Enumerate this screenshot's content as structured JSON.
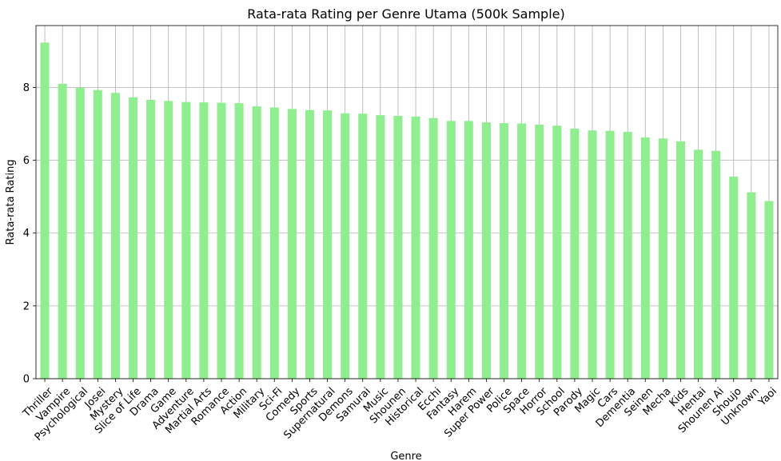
{
  "chart_data": {
    "type": "bar",
    "title": "Rata-rata Rating per Genre Utama (500k Sample)",
    "xlabel": "Genre",
    "ylabel": "Rata-rata Rating",
    "ylim": [
      0,
      9.7
    ],
    "yticks": [
      0,
      2,
      4,
      6,
      8
    ],
    "grid": true,
    "bar_color": "#90ee90",
    "categories": [
      "Thriller",
      "Vampire",
      "Psychological",
      "Josei",
      "Mystery",
      "Slice of Life",
      "Drama",
      "Game",
      "Adventure",
      "Martial Arts",
      "Romance",
      "Action",
      "Military",
      "Sci-Fi",
      "Comedy",
      "Sports",
      "Supernatural",
      "Demons",
      "Samurai",
      "Music",
      "Shounen",
      "Historical",
      "Ecchi",
      "Fantasy",
      "Harem",
      "Super Power",
      "Police",
      "Space",
      "Horror",
      "School",
      "Parody",
      "Magic",
      "Cars",
      "Dementia",
      "Seinen",
      "Mecha",
      "Kids",
      "Hentai",
      "Shounen Ai",
      "Shoujo",
      "Unknown",
      "Yaoi"
    ],
    "values": [
      9.23,
      8.1,
      7.99,
      7.93,
      7.85,
      7.73,
      7.66,
      7.63,
      7.6,
      7.59,
      7.58,
      7.57,
      7.48,
      7.45,
      7.41,
      7.38,
      7.37,
      7.29,
      7.28,
      7.24,
      7.22,
      7.2,
      7.16,
      7.08,
      7.08,
      7.04,
      7.02,
      7.01,
      6.98,
      6.95,
      6.87,
      6.82,
      6.81,
      6.78,
      6.63,
      6.6,
      6.52,
      6.29,
      6.26,
      5.55,
      5.12,
      4.88
    ]
  }
}
